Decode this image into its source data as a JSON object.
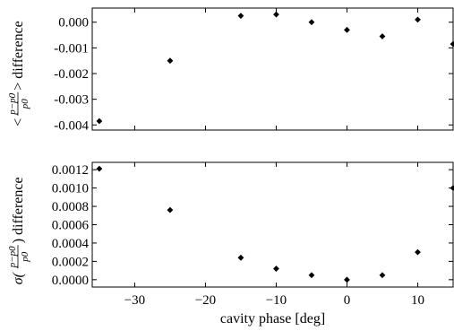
{
  "chart_data": [
    {
      "type": "scatter",
      "ylabel": {
        "prefix": "<",
        "fraction_numerator": "p−p0",
        "fraction_denominator": "p0",
        "suffix": "> difference"
      },
      "xlabel": "",
      "xlim": [
        -36,
        15
      ],
      "ylim": [
        -0.0042,
        0.00055
      ],
      "xticks": [
        -30,
        -20,
        -10,
        0,
        10
      ],
      "xtick_labels": [
        "−30",
        "−20",
        "−10",
        "0",
        "10"
      ],
      "xticks_labeled": false,
      "yticks": [
        0.0,
        -0.001,
        -0.002,
        -0.003,
        -0.004
      ],
      "ytick_labels": [
        "0.000",
        "-0.001",
        "-0.002",
        "-0.003",
        "-0.004"
      ],
      "grid": false,
      "marker": "diamond",
      "series": [
        {
          "x": [
            -35,
            -25,
            -15,
            -10,
            -5,
            0,
            5,
            10,
            15
          ],
          "y": [
            -0.00385,
            -0.0015,
            0.00025,
            0.0003,
            0.0,
            -0.0003,
            -0.00055,
            0.0001,
            -0.00085
          ]
        }
      ]
    },
    {
      "type": "scatter",
      "ylabel": {
        "prefix": "σ(",
        "fraction_numerator": "p−p0",
        "fraction_denominator": "p0",
        "suffix": ") difference"
      },
      "xlabel": "cavity phase [deg]",
      "xlim": [
        -36,
        15
      ],
      "ylim": [
        -8e-05,
        0.00128
      ],
      "xticks": [
        -30,
        -20,
        -10,
        0,
        10
      ],
      "xtick_labels": [
        "−30",
        "−20",
        "−10",
        "0",
        "10"
      ],
      "xticks_labeled": true,
      "yticks": [
        0.0,
        0.0002,
        0.0004,
        0.0006,
        0.0008,
        0.001,
        0.0012
      ],
      "ytick_labels": [
        "0.0000",
        "0.0002",
        "0.0004",
        "0.0006",
        "0.0008",
        "0.0010",
        "0.0012"
      ],
      "grid": false,
      "marker": "diamond",
      "series": [
        {
          "x": [
            -35,
            -25,
            -15,
            -10,
            -5,
            0,
            5,
            10,
            15
          ],
          "y": [
            0.00121,
            0.00076,
            0.00024,
            0.00012,
            5e-05,
            0.0,
            5e-05,
            0.0003,
            0.001
          ]
        }
      ]
    }
  ]
}
